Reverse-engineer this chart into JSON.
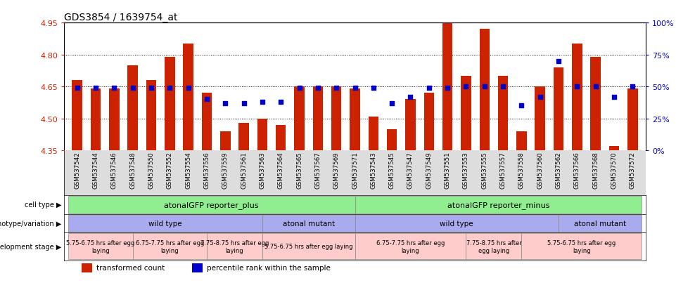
{
  "title": "GDS3854 / 1639754_at",
  "samples": [
    "GSM537542",
    "GSM537544",
    "GSM537546",
    "GSM537548",
    "GSM537550",
    "GSM537552",
    "GSM537554",
    "GSM537556",
    "GSM537559",
    "GSM537561",
    "GSM537563",
    "GSM537564",
    "GSM537565",
    "GSM537567",
    "GSM537569",
    "GSM537571",
    "GSM537543",
    "GSM537545",
    "GSM537547",
    "GSM537549",
    "GSM537551",
    "GSM537553",
    "GSM537555",
    "GSM537557",
    "GSM537558",
    "GSM537560",
    "GSM537562",
    "GSM537566",
    "GSM537568",
    "GSM537570",
    "GSM537572"
  ],
  "bar_values": [
    4.68,
    4.64,
    4.64,
    4.75,
    4.68,
    4.79,
    4.85,
    4.62,
    4.44,
    4.48,
    4.5,
    4.47,
    4.65,
    4.65,
    4.65,
    4.64,
    4.51,
    4.45,
    4.59,
    4.62,
    4.95,
    4.7,
    4.92,
    4.7,
    4.44,
    4.65,
    4.74,
    4.85,
    4.79,
    4.37,
    4.64
  ],
  "percentile_values": [
    49,
    49,
    49,
    49,
    49,
    49,
    49,
    40,
    37,
    37,
    38,
    38,
    49,
    49,
    49,
    49,
    49,
    37,
    42,
    49,
    49,
    50,
    50,
    50,
    35,
    42,
    70,
    50,
    50,
    42,
    50
  ],
  "ylim_left": [
    4.35,
    4.95
  ],
  "ylim_right": [
    0,
    100
  ],
  "yticks_left": [
    4.35,
    4.5,
    4.65,
    4.8,
    4.95
  ],
  "yticks_right": [
    0,
    25,
    50,
    75,
    100
  ],
  "grid_values": [
    4.5,
    4.65,
    4.8
  ],
  "bar_color": "#CC2200",
  "percentile_color": "#0000CC",
  "bar_bottom": 4.35,
  "cell_type_labels": [
    "atonalGFP reporter_plus",
    "atonalGFP reporter_minus"
  ],
  "cell_type_color": "#90EE90",
  "genotype_labels": [
    "wild type",
    "atonal mutant",
    "wild type",
    "atonal mutant"
  ],
  "genotype_color": "#AAAAEE",
  "devstage_labels": [
    "5.75-6.75 hrs after egg\nlaying",
    "6.75-7.75 hrs after egg\nlaying",
    "7.75-8.75 hrs after egg\nlaying",
    "5.75-6.75 hrs after egg laying",
    "6.75-7.75 hrs after egg\nlaying",
    "7.75-8.75 hrs after\negg laying",
    "5.75-6.75 hrs after egg\nlaying"
  ],
  "devstage_color": "#FFCCCC",
  "tick_label_bg": "#DDDDDD",
  "left_axis_color": "#CC2200",
  "right_axis_color": "#0000CC",
  "legend_bar_label": "transformed count",
  "legend_pct_label": "percentile rank within the sample"
}
